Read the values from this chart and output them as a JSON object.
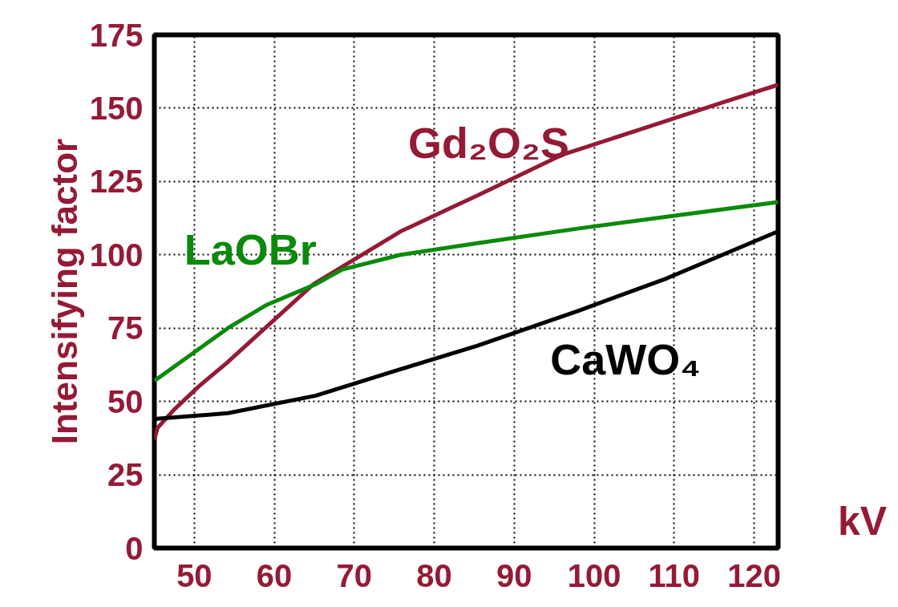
{
  "chart_data": {
    "type": "line",
    "xlabel": "kV",
    "ylabel": "Intensifying factor",
    "xlim": [
      45,
      123
    ],
    "ylim": [
      0,
      175
    ],
    "xticks": [
      50,
      60,
      70,
      80,
      90,
      100,
      110,
      120
    ],
    "yticks": [
      0,
      25,
      50,
      75,
      100,
      125,
      150,
      175
    ],
    "grid": true,
    "marker": "none",
    "line_style": "solid",
    "series": [
      {
        "name": "Gd₂O₂S",
        "color": "#951a35",
        "x": [
          45,
          45.4,
          47.4,
          50.5,
          54,
          64.9,
          75.8,
          85.2,
          95.9,
          106,
          116.1,
          123
        ],
        "values": [
          37,
          41,
          47,
          55,
          63,
          90,
          108,
          120,
          134,
          143,
          152,
          158
        ]
      },
      {
        "name": "LaOBr",
        "color": "#0a8a0a",
        "x": [
          45,
          54.2,
          59.1,
          65.2,
          68.5,
          75.8,
          85.4,
          98.1,
          109.1,
          123
        ],
        "values": [
          57,
          75,
          83,
          90,
          95,
          100,
          104,
          109,
          113,
          118
        ]
      },
      {
        "name": "CaWO₄",
        "color": "#000000",
        "x": [
          45,
          54.2,
          65.2,
          75.8,
          85.4,
          98.1,
          109.1,
          123
        ],
        "values": [
          44,
          46,
          52,
          61,
          69,
          81,
          92,
          108
        ]
      }
    ]
  }
}
